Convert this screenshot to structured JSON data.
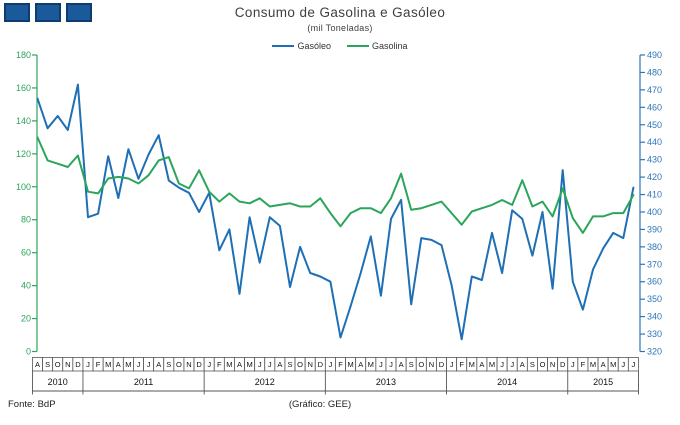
{
  "header": {
    "title": "Consumo de Gasolina e Gasóleo",
    "subtitle": "(mil Toneladas)"
  },
  "legend": [
    {
      "label": "Gasóleo",
      "color": "#1E6FB5"
    },
    {
      "label": "Gasolina",
      "color": "#2BA55A"
    }
  ],
  "footer": {
    "source": "Fonte: BdP",
    "credit": "(Gráfico: GEE)"
  },
  "colors": {
    "gasoleo_line": "#1E6FB5",
    "gasolina_line": "#2BA55A",
    "left_axis": "#2BA55A",
    "right_axis": "#2E75B6",
    "box_border": "#555555",
    "label_text": "#111111",
    "logo_fill": "#1A5A9A",
    "logo_border": "#0E3C6E"
  },
  "chart_data": {
    "type": "line",
    "title": "Consumo de Gasolina e Gasóleo",
    "subtitle": "(mil Toneladas)",
    "grid": false,
    "legend_position": "top-center",
    "x_months": [
      "A",
      "S",
      "O",
      "N",
      "D",
      "J",
      "F",
      "M",
      "A",
      "M",
      "J",
      "J",
      "A",
      "S",
      "O",
      "N",
      "D",
      "J",
      "F",
      "M",
      "A",
      "M",
      "J",
      "J",
      "A",
      "S",
      "O",
      "N",
      "D",
      "J",
      "F",
      "M",
      "A",
      "M",
      "J",
      "J",
      "A",
      "S",
      "O",
      "N",
      "D",
      "J",
      "F",
      "M",
      "A",
      "M",
      "J",
      "J",
      "A",
      "S",
      "O",
      "N",
      "D",
      "J",
      "F",
      "M",
      "A",
      "M",
      "J",
      "J"
    ],
    "year_groups": [
      {
        "year": "2010",
        "months": 5
      },
      {
        "year": "2011",
        "months": 12
      },
      {
        "year": "2012",
        "months": 12
      },
      {
        "year": "2013",
        "months": 12
      },
      {
        "year": "2014",
        "months": 12
      },
      {
        "year": "2015",
        "months": 7
      }
    ],
    "left_axis": {
      "min": 0,
      "max": 180,
      "step": 20,
      "color": "#2BA55A",
      "series": "Gasolina"
    },
    "right_axis": {
      "min": 320,
      "max": 490,
      "step": 10,
      "color": "#2E75B6",
      "series": "Gasóleo"
    },
    "series": [
      {
        "name": "Gasóleo",
        "axis": "right",
        "color": "#1E6FB5",
        "values": [
          465,
          448,
          455,
          447,
          473,
          397,
          399,
          432,
          408,
          436,
          419,
          433,
          444,
          418,
          414,
          411,
          400,
          411,
          378,
          390,
          353,
          397,
          371,
          397,
          392,
          357,
          380,
          365,
          363,
          360,
          328,
          346,
          365,
          386,
          352,
          396,
          407,
          347,
          385,
          384,
          381,
          358,
          327,
          363,
          361,
          388,
          365,
          401,
          396,
          375,
          400,
          356,
          424,
          360,
          344,
          367,
          379,
          388,
          385,
          414
        ]
      },
      {
        "name": "Gasolina",
        "axis": "left",
        "color": "#2BA55A",
        "values": [
          130,
          116,
          114,
          112,
          119,
          97,
          96,
          105,
          106,
          105,
          102,
          107,
          116,
          118,
          102,
          99,
          110,
          97,
          91,
          96,
          91,
          90,
          93,
          88,
          89,
          90,
          88,
          88,
          93,
          84,
          76,
          84,
          87,
          87,
          84,
          93,
          108,
          86,
          87,
          89,
          91,
          84,
          77,
          85,
          87,
          89,
          92,
          89,
          104,
          88,
          91,
          82,
          99,
          81,
          72,
          82,
          82,
          84,
          84,
          95
        ]
      }
    ]
  }
}
